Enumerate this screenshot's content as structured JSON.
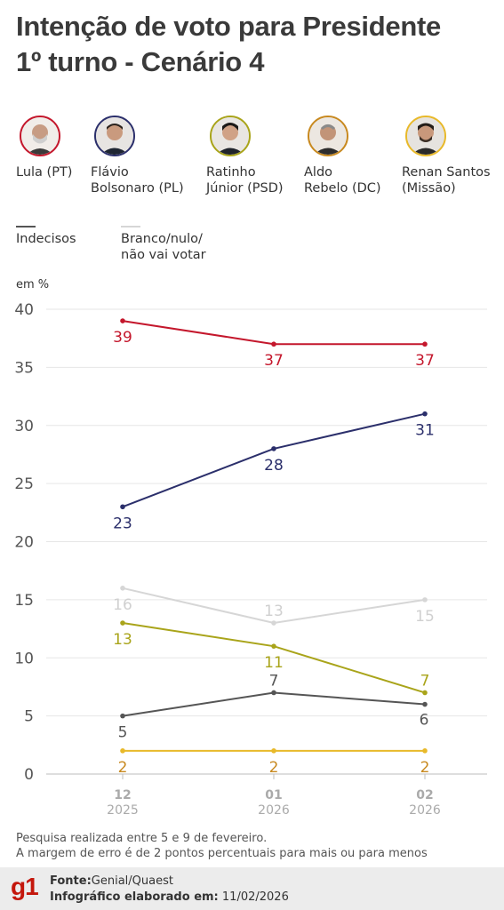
{
  "title": {
    "line1": "Intenção de voto para Presidente",
    "line2": "1º turno - Cenário 4"
  },
  "candidates": [
    {
      "label": "Lula (PT)",
      "color": "#c4172c",
      "icon": "lula-avatar-icon"
    },
    {
      "label": "Flávio\nBolsonaro (PL)",
      "color": "#2b2f6b",
      "icon": "flavio-avatar-icon"
    },
    {
      "label": "Ratinho\nJúnior (PSD)",
      "color": "#a9a41a",
      "icon": "ratinho-avatar-icon"
    },
    {
      "label": "Aldo\nRebelo (DC)",
      "color": "#c8891f",
      "icon": "aldo-avatar-icon"
    },
    {
      "label": "Renan Santos\n(Missão)",
      "color": "#e8b92a",
      "icon": "renan-avatar-icon"
    }
  ],
  "legend": [
    {
      "label": "Indecisos",
      "color": "#555555"
    },
    {
      "label": "Branco/nulo/\nnão vai votar",
      "color": "#d6d6d6"
    }
  ],
  "unit": "em %",
  "chart_data": {
    "type": "line",
    "x": [
      {
        "month": "12",
        "year": "2025"
      },
      {
        "month": "01",
        "year": "2026"
      },
      {
        "month": "02",
        "year": "2026"
      }
    ],
    "ylim": [
      0,
      40
    ],
    "yticks": [
      0,
      5,
      10,
      15,
      20,
      25,
      30,
      35,
      40
    ],
    "grid": true,
    "series": [
      {
        "name": "Branco/nulo/não vai votar",
        "color": "#d6d6d6",
        "label_color": "#d0d0d0",
        "values": [
          16,
          13,
          15
        ],
        "label_pos": [
          "below",
          "above",
          "below"
        ]
      },
      {
        "name": "Indecisos",
        "color": "#555555",
        "label_color": "#555555",
        "values": [
          5,
          7,
          6
        ],
        "label_pos": [
          "below",
          "above",
          "right"
        ]
      },
      {
        "name": "Renan Santos (Missão)",
        "color": "#e8b92a",
        "label_color": "#c8891f",
        "values": [
          2,
          2,
          2
        ],
        "label_pos": [
          "below",
          "below",
          "below"
        ]
      },
      {
        "name": "Ratinho Júnior (PSD)",
        "color": "#a9a41a",
        "label_color": "#a9a41a",
        "values": [
          13,
          11,
          7
        ],
        "label_pos": [
          "below",
          "below",
          "above"
        ]
      },
      {
        "name": "Flávio Bolsonaro (PL)",
        "color": "#2b2f6b",
        "label_color": "#2b2f6b",
        "values": [
          23,
          28,
          31
        ],
        "label_pos": [
          "below",
          "below",
          "below"
        ]
      },
      {
        "name": "Lula (PT)",
        "color": "#c4172c",
        "label_color": "#c4172c",
        "values": [
          39,
          37,
          37
        ],
        "label_pos": [
          "below",
          "below",
          "below"
        ]
      }
    ]
  },
  "notes": {
    "line1": "Pesquisa realizada entre 5 e 9 de fevereiro.",
    "line2": "A margem de erro é de 2 pontos percentuais para mais ou para menos"
  },
  "footer": {
    "logo": "g1",
    "source_label": "Fonte:",
    "source_value": "Genial/Quaest",
    "made_label": "Infográfico elaborado em:",
    "made_value": "11/02/2026"
  }
}
